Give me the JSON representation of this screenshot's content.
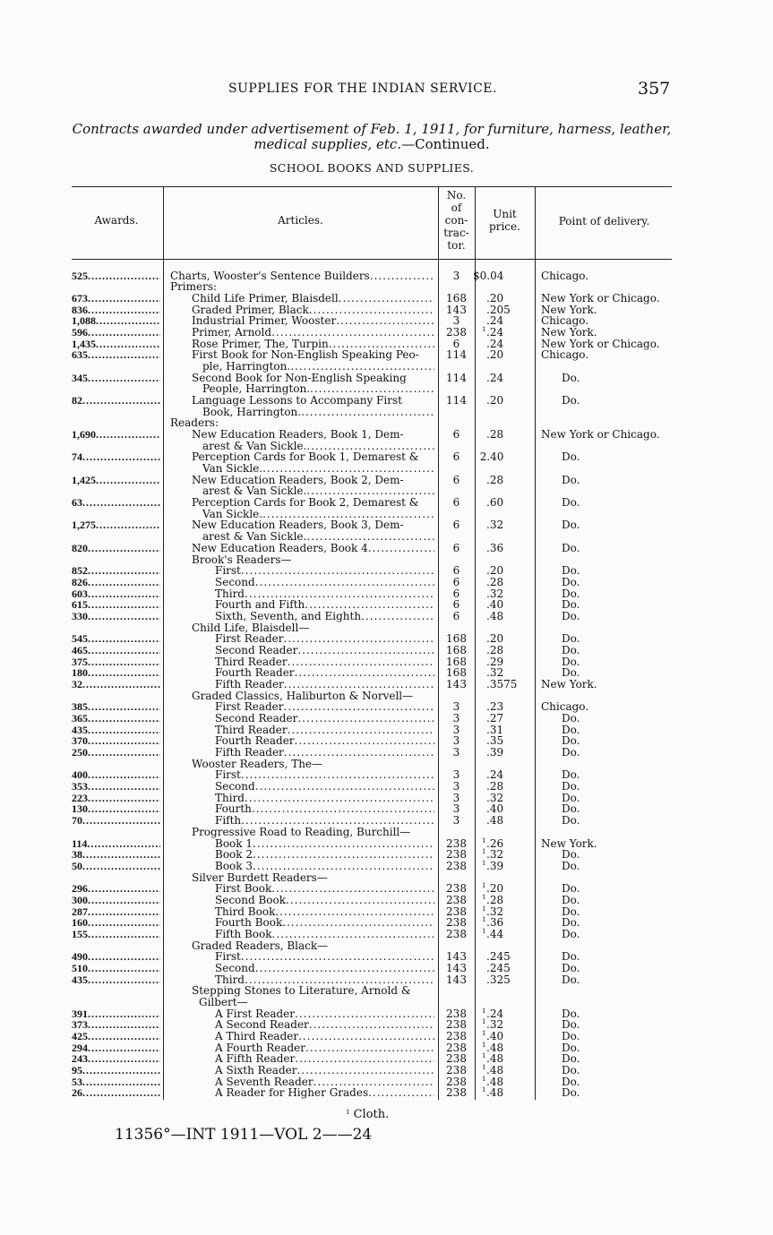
{
  "header": {
    "running_title": "SUPPLIES FOR THE INDIAN SERVICE.",
    "page_number": "357"
  },
  "subtitle": {
    "italic_part": "Contracts awarded under advertisement of Feb. 1, 1911, for furniture, harness, leather,",
    "italic_part2": "medical supplies, etc.",
    "plain_part": "—Continued."
  },
  "section_title": "SCHOOL BOOKS AND SUPPLIES.",
  "columns": {
    "awards": "Awards.",
    "articles": "Articles.",
    "contractor": [
      "No.",
      "of",
      "con-",
      "trac-",
      "tor."
    ],
    "price": [
      "Unit",
      "price."
    ],
    "delivery": "Point of delivery."
  },
  "rows": [
    {
      "award": "525",
      "article": [
        "Charts, Wooster's Sentence Builders"
      ],
      "level": 0,
      "contractor": "3",
      "price": "$0.04",
      "delivery": "Chicago."
    },
    {
      "article": [
        "Primers:"
      ],
      "level": 0,
      "heading": true
    },
    {
      "award": "673",
      "article": [
        "Child Life Primer, Blaisdell"
      ],
      "level": 1,
      "contractor": "168",
      "price": ".20",
      "delivery": "New York or Chicago."
    },
    {
      "award": "836",
      "article": [
        "Graded Primer, Black"
      ],
      "level": 1,
      "contractor": "143",
      "price": ".205",
      "delivery": "New York."
    },
    {
      "award": "1,088",
      "article": [
        "Industrial Primer, Wooster"
      ],
      "level": 1,
      "contractor": "3",
      "price": ".24",
      "delivery": "Chicago."
    },
    {
      "award": "596",
      "article": [
        "Primer, Arnold"
      ],
      "level": 1,
      "contractor": "238",
      "price": ".24",
      "note": "1",
      "delivery": "New York."
    },
    {
      "award": "1,435",
      "article": [
        "Rose Primer, The, Turpin"
      ],
      "level": 1,
      "contractor": "6",
      "price": ".24",
      "delivery": "New York or Chicago."
    },
    {
      "award": "635",
      "article": [
        "First Book for Non-English Speaking Peo-",
        "ple, Harrington."
      ],
      "level": 1,
      "contractor": "114",
      "price": ".20",
      "delivery": "Chicago."
    },
    {
      "award": "345",
      "article": [
        "Second Book for Non-English Speaking",
        "People, Harrington."
      ],
      "level": 1,
      "contractor": "114",
      "price": ".24",
      "delivery": "Do."
    },
    {
      "award": "82",
      "article": [
        "Language Lessons to Accompany First",
        "Book, Harrington."
      ],
      "level": 1,
      "contractor": "114",
      "price": ".20",
      "delivery": "Do."
    },
    {
      "article": [
        "Readers:"
      ],
      "level": 0,
      "heading": true
    },
    {
      "award": "1,690",
      "article": [
        "New Education Readers, Book 1, Dem-",
        "arest & Van Sickle."
      ],
      "level": 1,
      "contractor": "6",
      "price": ".28",
      "delivery": "New York or Chicago."
    },
    {
      "award": "74",
      "article": [
        "Perception Cards for Book 1, Demarest &",
        "Van Sickle."
      ],
      "level": 1,
      "contractor": "6",
      "price": "2.40",
      "delivery": "Do."
    },
    {
      "award": "1,425",
      "article": [
        "New Education Readers, Book 2, Dem-",
        "arest & Van Sickle."
      ],
      "level": 1,
      "contractor": "6",
      "price": ".28",
      "delivery": "Do."
    },
    {
      "award": "63",
      "article": [
        "Perception Cards for Book 2, Demarest &",
        "Van Sickle."
      ],
      "level": 1,
      "contractor": "6",
      "price": ".60",
      "delivery": "Do."
    },
    {
      "award": "1,275",
      "article": [
        "New Education Readers, Book 3, Dem-",
        "arest & Van Sickle."
      ],
      "level": 1,
      "contractor": "6",
      "price": ".32",
      "delivery": "Do."
    },
    {
      "award": "820",
      "article": [
        "New Education Readers, Book 4"
      ],
      "level": 1,
      "contractor": "6",
      "price": ".36",
      "delivery": "Do."
    },
    {
      "article": [
        "Brook's Readers—"
      ],
      "level": 1,
      "heading": true
    },
    {
      "award": "852",
      "article": [
        "First"
      ],
      "level": 2,
      "contractor": "6",
      "price": ".20",
      "delivery": "Do."
    },
    {
      "award": "826",
      "article": [
        "Second"
      ],
      "level": 2,
      "contractor": "6",
      "price": ".28",
      "delivery": "Do."
    },
    {
      "award": "603",
      "article": [
        "Third"
      ],
      "level": 2,
      "contractor": "6",
      "price": ".32",
      "delivery": "Do."
    },
    {
      "award": "615",
      "article": [
        "Fourth and Fifth"
      ],
      "level": 2,
      "contractor": "6",
      "price": ".40",
      "delivery": "Do."
    },
    {
      "award": "330",
      "article": [
        "Sixth, Seventh, and Eighth"
      ],
      "level": 2,
      "contractor": "6",
      "price": ".48",
      "delivery": "Do."
    },
    {
      "article": [
        "Child Life, Blaisdell—"
      ],
      "level": 1,
      "heading": true
    },
    {
      "award": "545",
      "article": [
        "First Reader"
      ],
      "level": 2,
      "contractor": "168",
      "price": ".20",
      "delivery": "Do."
    },
    {
      "award": "465",
      "article": [
        "Second Reader"
      ],
      "level": 2,
      "contractor": "168",
      "price": ".28",
      "delivery": "Do."
    },
    {
      "award": "375",
      "article": [
        "Third Reader"
      ],
      "level": 2,
      "contractor": "168",
      "price": ".29",
      "delivery": "Do."
    },
    {
      "award": "180",
      "article": [
        "Fourth Reader"
      ],
      "level": 2,
      "contractor": "168",
      "price": ".32",
      "delivery": "Do."
    },
    {
      "award": "32",
      "article": [
        "Fifth Reader"
      ],
      "level": 2,
      "contractor": "143",
      "price": ".3575",
      "delivery": "New York."
    },
    {
      "article": [
        "Graded Classics, Haliburton & Norvell—"
      ],
      "level": 1,
      "heading": true
    },
    {
      "award": "385",
      "article": [
        "First Reader"
      ],
      "level": 2,
      "contractor": "3",
      "price": ".23",
      "delivery": "Chicago."
    },
    {
      "award": "365",
      "article": [
        "Second Reader"
      ],
      "level": 2,
      "contractor": "3",
      "price": ".27",
      "delivery": "Do."
    },
    {
      "award": "435",
      "article": [
        "Third Reader"
      ],
      "level": 2,
      "contractor": "3",
      "price": ".31",
      "delivery": "Do."
    },
    {
      "award": "370",
      "article": [
        "Fourth Reader"
      ],
      "level": 2,
      "contractor": "3",
      "price": ".35",
      "delivery": "Do."
    },
    {
      "award": "250",
      "article": [
        "Fifth Reader"
      ],
      "level": 2,
      "contractor": "3",
      "price": ".39",
      "delivery": "Do."
    },
    {
      "article": [
        "Wooster Readers, The—"
      ],
      "level": 1,
      "heading": true
    },
    {
      "award": "400",
      "article": [
        "First"
      ],
      "level": 2,
      "contractor": "3",
      "price": ".24",
      "delivery": "Do."
    },
    {
      "award": "353",
      "article": [
        "Second"
      ],
      "level": 2,
      "contractor": "3",
      "price": ".28",
      "delivery": "Do."
    },
    {
      "award": "223",
      "article": [
        "Third"
      ],
      "level": 2,
      "contractor": "3",
      "price": ".32",
      "delivery": "Do."
    },
    {
      "award": "130",
      "article": [
        "Fourth"
      ],
      "level": 2,
      "contractor": "3",
      "price": ".40",
      "delivery": "Do."
    },
    {
      "award": "70",
      "article": [
        "Fifth"
      ],
      "level": 2,
      "contractor": "3",
      "price": ".48",
      "delivery": "Do."
    },
    {
      "article": [
        "Progressive Road to Reading, Burchill—"
      ],
      "level": 1,
      "heading": true
    },
    {
      "award": "114",
      "article": [
        "Book 1"
      ],
      "level": 2,
      "contractor": "238",
      "price": ".26",
      "note": "1",
      "delivery": "New York."
    },
    {
      "award": "38",
      "article": [
        "Book 2"
      ],
      "level": 2,
      "contractor": "238",
      "price": ".32",
      "note": "1",
      "delivery": "Do."
    },
    {
      "award": "50",
      "article": [
        "Book 3"
      ],
      "level": 2,
      "contractor": "238",
      "price": ".39",
      "note": "1",
      "delivery": "Do."
    },
    {
      "article": [
        "Silver Burdett Readers—"
      ],
      "level": 1,
      "heading": true
    },
    {
      "award": "296",
      "article": [
        "First Book"
      ],
      "level": 2,
      "contractor": "238",
      "price": ".20",
      "note": "1",
      "delivery": "Do."
    },
    {
      "award": "300",
      "article": [
        "Second Book"
      ],
      "level": 2,
      "contractor": "238",
      "price": ".28",
      "note": "1",
      "delivery": "Do."
    },
    {
      "award": "287",
      "article": [
        "Third Book"
      ],
      "level": 2,
      "contractor": "238",
      "price": ".32",
      "note": "1",
      "delivery": "Do."
    },
    {
      "award": "160",
      "article": [
        "Fourth Book"
      ],
      "level": 2,
      "contractor": "238",
      "price": ".36",
      "note": "1",
      "delivery": "Do."
    },
    {
      "award": "155",
      "article": [
        "Fifth Book"
      ],
      "level": 2,
      "contractor": "238",
      "price": ".44",
      "note": "1",
      "delivery": "Do."
    },
    {
      "article": [
        "Graded Readers, Black—"
      ],
      "level": 1,
      "heading": true
    },
    {
      "award": "490",
      "article": [
        "First"
      ],
      "level": 2,
      "contractor": "143",
      "price": ".245",
      "delivery": "Do."
    },
    {
      "award": "510",
      "article": [
        "Second"
      ],
      "level": 2,
      "contractor": "143",
      "price": ".245",
      "delivery": "Do."
    },
    {
      "award": "435",
      "article": [
        "Third"
      ],
      "level": 2,
      "contractor": "143",
      "price": ".325",
      "delivery": "Do."
    },
    {
      "article": [
        "Stepping Stones to Literature, Arnold &",
        "Gilbert—"
      ],
      "level": 1,
      "heading": true
    },
    {
      "award": "391",
      "article": [
        "A First Reader"
      ],
      "level": 2,
      "contractor": "238",
      "price": ".24",
      "note": "1",
      "delivery": "Do."
    },
    {
      "award": "373",
      "article": [
        "A Second Reader"
      ],
      "level": 2,
      "contractor": "238",
      "price": ".32",
      "note": "1",
      "delivery": "Do."
    },
    {
      "award": "425",
      "article": [
        "A Third Reader"
      ],
      "level": 2,
      "contractor": "238",
      "price": ".40",
      "note": "1",
      "delivery": "Do."
    },
    {
      "award": "294",
      "article": [
        "A Fourth Reader"
      ],
      "level": 2,
      "contractor": "238",
      "price": ".48",
      "note": "1",
      "delivery": "Do."
    },
    {
      "award": "243",
      "article": [
        "A Fifth Reader"
      ],
      "level": 2,
      "contractor": "238",
      "price": ".48",
      "note": "1",
      "delivery": "Do."
    },
    {
      "award": "95",
      "article": [
        "A Sixth Reader"
      ],
      "level": 2,
      "contractor": "238",
      "price": ".48",
      "note": "1",
      "delivery": "Do."
    },
    {
      "award": "53",
      "article": [
        "A Seventh Reader"
      ],
      "level": 2,
      "contractor": "238",
      "price": ".48",
      "note": "1",
      "delivery": "Do."
    },
    {
      "award": "26",
      "article": [
        "A Reader for Higher Grades"
      ],
      "level": 2,
      "contractor": "238",
      "price": ".48",
      "note": "1",
      "delivery": "Do."
    }
  ],
  "footnote": {
    "marker": "1",
    "text": " Cloth."
  },
  "footer": "11356°—INT 1911—VOL 2——24"
}
